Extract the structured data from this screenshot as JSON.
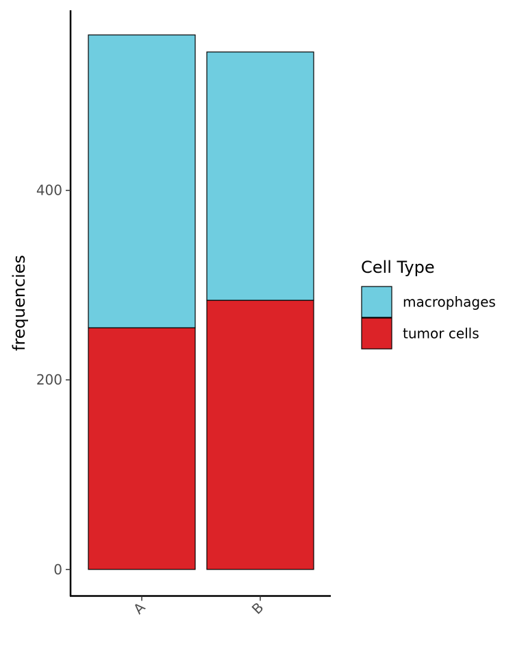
{
  "chart_data": {
    "type": "bar",
    "stacked": true,
    "categories": [
      "A",
      "B"
    ],
    "series": [
      {
        "name": "tumor cells",
        "values": [
          255,
          284
        ],
        "color": "#DC2328"
      },
      {
        "name": "macrophages",
        "values": [
          309,
          262
        ],
        "color": "#6FCDE0"
      }
    ],
    "xlabel": "",
    "ylabel": "frequencies",
    "ylim": [
      -28,
      590
    ],
    "yticks": [
      0,
      200,
      400
    ],
    "xtick_rotation": 45,
    "legend": {
      "title": "Cell Type",
      "position": "right",
      "order": [
        "macrophages",
        "tumor cells"
      ]
    },
    "grid": false
  }
}
